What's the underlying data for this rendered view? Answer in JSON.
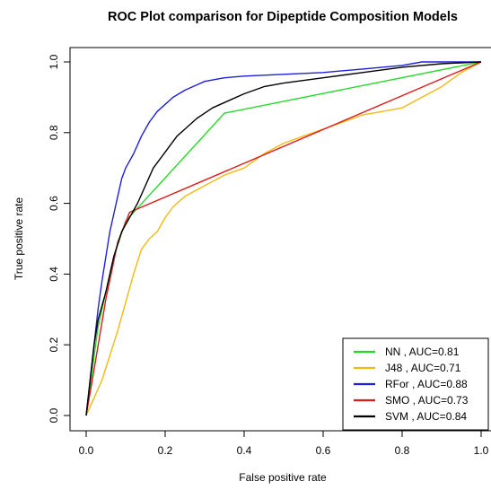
{
  "chart_data": {
    "type": "line",
    "title": "ROC Plot comparison for Dipeptide Composition Models",
    "xlabel": "False positive rate",
    "ylabel": "True positive rate",
    "xlim": [
      0,
      1
    ],
    "ylim": [
      0,
      1
    ],
    "x_ticks": [
      "0.0",
      "0.2",
      "0.4",
      "0.6",
      "0.8",
      "1.0"
    ],
    "y_ticks": [
      "0.0",
      "0.2",
      "0.4",
      "0.6",
      "0.8",
      "1.0"
    ],
    "grid": false,
    "legend_position": "bottom-right",
    "series": [
      {
        "name": "NN , AUC=0.81",
        "color": "#22dd22",
        "points": [
          [
            0,
            0
          ],
          [
            0.03,
            0.25
          ],
          [
            0.07,
            0.45
          ],
          [
            0.1,
            0.55
          ],
          [
            0.35,
            0.855
          ],
          [
            1,
            1
          ]
        ]
      },
      {
        "name": "J48 , AUC=0.71",
        "color": "#f5b90f",
        "points": [
          [
            0,
            0
          ],
          [
            0.02,
            0.05
          ],
          [
            0.04,
            0.1
          ],
          [
            0.06,
            0.17
          ],
          [
            0.08,
            0.24
          ],
          [
            0.1,
            0.32
          ],
          [
            0.12,
            0.4
          ],
          [
            0.14,
            0.47
          ],
          [
            0.16,
            0.5
          ],
          [
            0.18,
            0.52
          ],
          [
            0.2,
            0.56
          ],
          [
            0.22,
            0.59
          ],
          [
            0.25,
            0.62
          ],
          [
            0.3,
            0.65
          ],
          [
            0.35,
            0.68
          ],
          [
            0.4,
            0.7
          ],
          [
            0.45,
            0.74
          ],
          [
            0.5,
            0.77
          ],
          [
            0.55,
            0.79
          ],
          [
            0.6,
            0.81
          ],
          [
            0.65,
            0.83
          ],
          [
            0.7,
            0.85
          ],
          [
            0.75,
            0.86
          ],
          [
            0.8,
            0.87
          ],
          [
            0.85,
            0.9
          ],
          [
            0.9,
            0.93
          ],
          [
            0.95,
            0.97
          ],
          [
            1,
            1
          ]
        ]
      },
      {
        "name": "RFor , AUC=0.88",
        "color": "#1f1fdd",
        "points": [
          [
            0,
            0
          ],
          [
            0.01,
            0.1
          ],
          [
            0.02,
            0.2
          ],
          [
            0.03,
            0.3
          ],
          [
            0.04,
            0.38
          ],
          [
            0.05,
            0.45
          ],
          [
            0.06,
            0.52
          ],
          [
            0.07,
            0.57
          ],
          [
            0.08,
            0.62
          ],
          [
            0.09,
            0.67
          ],
          [
            0.1,
            0.7
          ],
          [
            0.12,
            0.74
          ],
          [
            0.14,
            0.79
          ],
          [
            0.16,
            0.83
          ],
          [
            0.18,
            0.86
          ],
          [
            0.2,
            0.88
          ],
          [
            0.22,
            0.9
          ],
          [
            0.25,
            0.92
          ],
          [
            0.28,
            0.935
          ],
          [
            0.3,
            0.945
          ],
          [
            0.35,
            0.955
          ],
          [
            0.4,
            0.96
          ],
          [
            0.5,
            0.965
          ],
          [
            0.6,
            0.97
          ],
          [
            0.7,
            0.98
          ],
          [
            0.8,
            0.99
          ],
          [
            0.85,
            1
          ],
          [
            1,
            1
          ]
        ]
      },
      {
        "name": "SMO , AUC=0.73",
        "color": "#e01a1a",
        "points": [
          [
            0,
            0
          ],
          [
            0.02,
            0.13
          ],
          [
            0.05,
            0.33
          ],
          [
            0.08,
            0.49
          ],
          [
            0.11,
            0.575
          ],
          [
            1,
            1
          ]
        ]
      },
      {
        "name": "SVM , AUC=0.84",
        "color": "#000000",
        "points": [
          [
            0,
            0
          ],
          [
            0.01,
            0.1
          ],
          [
            0.02,
            0.2
          ],
          [
            0.03,
            0.27
          ],
          [
            0.05,
            0.35
          ],
          [
            0.07,
            0.45
          ],
          [
            0.09,
            0.52
          ],
          [
            0.11,
            0.56
          ],
          [
            0.13,
            0.6
          ],
          [
            0.15,
            0.65
          ],
          [
            0.17,
            0.7
          ],
          [
            0.19,
            0.73
          ],
          [
            0.21,
            0.76
          ],
          [
            0.23,
            0.79
          ],
          [
            0.25,
            0.81
          ],
          [
            0.28,
            0.84
          ],
          [
            0.32,
            0.87
          ],
          [
            0.36,
            0.89
          ],
          [
            0.4,
            0.91
          ],
          [
            0.45,
            0.93
          ],
          [
            0.5,
            0.94
          ],
          [
            0.6,
            0.955
          ],
          [
            0.7,
            0.97
          ],
          [
            0.8,
            0.985
          ],
          [
            0.9,
            0.995
          ],
          [
            1,
            1
          ]
        ]
      }
    ]
  }
}
